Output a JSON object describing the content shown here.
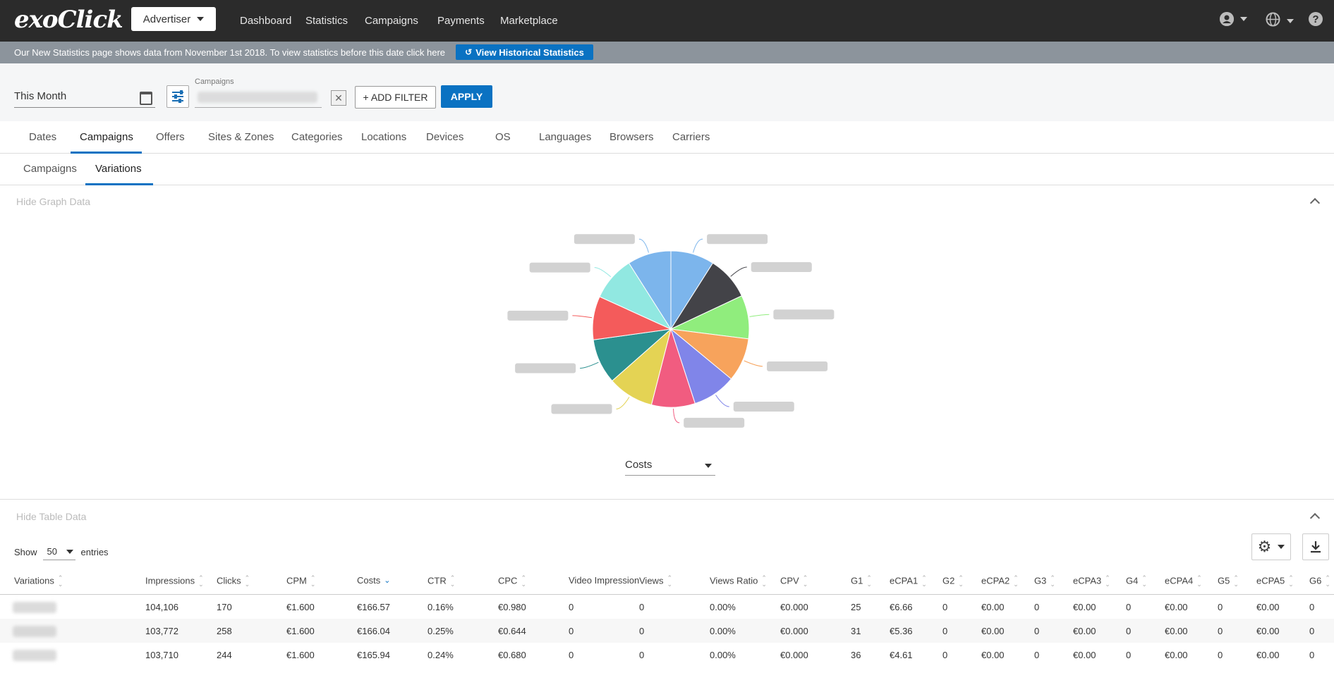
{
  "app": {
    "logo_text": "exoClick",
    "account_selector": "Advertiser",
    "nav": [
      "Dashboard",
      "Statistics",
      "Campaigns",
      "Payments",
      "Marketplace"
    ]
  },
  "banner": {
    "text": "Our New Statistics page shows data from November 1st 2018. To view statistics before this date click here",
    "button_label": "View Historical Statistics"
  },
  "filters": {
    "date_range": "This Month",
    "campaigns_label": "Campaigns",
    "add_filter_label": "+ ADD FILTER",
    "apply_label": "APPLY"
  },
  "tabs": [
    "Dates",
    "Campaigns",
    "Offers",
    "Sites & Zones",
    "Categories",
    "Locations",
    "Devices",
    "OS",
    "Languages",
    "Browsers",
    "Carriers"
  ],
  "active_tab": "Campaigns",
  "subtabs": [
    "Campaigns",
    "Variations"
  ],
  "active_subtab": "Variations",
  "graph": {
    "toggle_label": "Hide Graph Data",
    "metric_selector": "Costs"
  },
  "chart_data": {
    "type": "pie",
    "metric": "Costs",
    "labels_visible": false,
    "slices": [
      {
        "value": 9.0,
        "color": "#7cb5ec"
      },
      {
        "value": 9.0,
        "color": "#434348"
      },
      {
        "value": 9.0,
        "color": "#90ed7d"
      },
      {
        "value": 9.0,
        "color": "#f7a35c"
      },
      {
        "value": 9.0,
        "color": "#8085e9"
      },
      {
        "value": 9.0,
        "color": "#f15c80"
      },
      {
        "value": 9.5,
        "color": "#e4d354"
      },
      {
        "value": 9.3,
        "color": "#2b908f"
      },
      {
        "value": 9.0,
        "color": "#f45b5b"
      },
      {
        "value": 9.2,
        "color": "#91e8e1"
      },
      {
        "value": 9.0,
        "color": "#7cb5ec"
      }
    ]
  },
  "table": {
    "toggle_label": "Hide Table Data",
    "show_label": "Show",
    "entries_value": "50",
    "entries_label": "entries",
    "columns": [
      "Variations",
      "Impressions",
      "Clicks",
      "CPM",
      "Costs",
      "CTR",
      "CPC",
      "Video Impressions",
      "Views",
      "Views Ratio",
      "CPV",
      "G1",
      "eCPA1",
      "G2",
      "eCPA2",
      "G3",
      "eCPA3",
      "G4",
      "eCPA4",
      "G5",
      "eCPA5",
      "G6"
    ],
    "rows": [
      [
        "",
        "104,106",
        "170",
        "€1.600",
        "€166.57",
        "0.16%",
        "€0.980",
        "0",
        "0",
        "0.00%",
        "€0.000",
        "25",
        "€6.66",
        "0",
        "€0.00",
        "0",
        "€0.00",
        "0",
        "€0.00",
        "0",
        "€0.00",
        "0"
      ],
      [
        "",
        "103,772",
        "258",
        "€1.600",
        "€166.04",
        "0.25%",
        "€0.644",
        "0",
        "0",
        "0.00%",
        "€0.000",
        "31",
        "€5.36",
        "0",
        "€0.00",
        "0",
        "€0.00",
        "0",
        "€0.00",
        "0",
        "€0.00",
        "0"
      ],
      [
        "",
        "103,710",
        "244",
        "€1.600",
        "€165.94",
        "0.24%",
        "€0.680",
        "0",
        "0",
        "0.00%",
        "€0.000",
        "36",
        "€4.61",
        "0",
        "€0.00",
        "0",
        "€0.00",
        "0",
        "€0.00",
        "0",
        "€0.00",
        "0"
      ]
    ]
  },
  "icons": {
    "user": "user-circle-icon",
    "language": "globe-icon",
    "help": "help-icon",
    "settings": "gear-icon",
    "download": "download-icon",
    "calendar": "calendar-icon",
    "history": "history-icon"
  }
}
